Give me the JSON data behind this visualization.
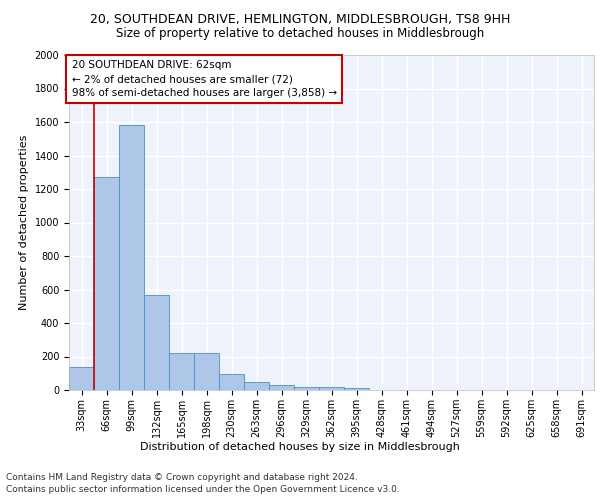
{
  "title1": "20, SOUTHDEAN DRIVE, HEMLINGTON, MIDDLESBROUGH, TS8 9HH",
  "title2": "Size of property relative to detached houses in Middlesbrough",
  "xlabel": "Distribution of detached houses by size in Middlesbrough",
  "ylabel": "Number of detached properties",
  "categories": [
    "33sqm",
    "66sqm",
    "99sqm",
    "132sqm",
    "165sqm",
    "198sqm",
    "230sqm",
    "263sqm",
    "296sqm",
    "329sqm",
    "362sqm",
    "395sqm",
    "428sqm",
    "461sqm",
    "494sqm",
    "527sqm",
    "559sqm",
    "592sqm",
    "625sqm",
    "658sqm",
    "691sqm"
  ],
  "values": [
    140,
    1270,
    1580,
    570,
    220,
    220,
    95,
    50,
    30,
    20,
    15,
    10,
    0,
    0,
    0,
    0,
    0,
    0,
    0,
    0,
    0
  ],
  "bar_color": "#aec6e8",
  "bar_edge_color": "#4a90c4",
  "annotation_box_text": "20 SOUTHDEAN DRIVE: 62sqm\n← 2% of detached houses are smaller (72)\n98% of semi-detached houses are larger (3,858) →",
  "vline_color": "#cc0000",
  "vline_x": 0.5,
  "box_edge_color": "#cc0000",
  "footer1": "Contains HM Land Registry data © Crown copyright and database right 2024.",
  "footer2": "Contains public sector information licensed under the Open Government Licence v3.0.",
  "ylim": [
    0,
    2000
  ],
  "yticks": [
    0,
    200,
    400,
    600,
    800,
    1000,
    1200,
    1400,
    1600,
    1800,
    2000
  ],
  "background_color": "#eef2fb",
  "grid_color": "#ffffff",
  "title1_fontsize": 9,
  "title2_fontsize": 8.5,
  "axis_label_fontsize": 8,
  "tick_fontsize": 7,
  "footer_fontsize": 6.5,
  "annotation_fontsize": 7.5
}
